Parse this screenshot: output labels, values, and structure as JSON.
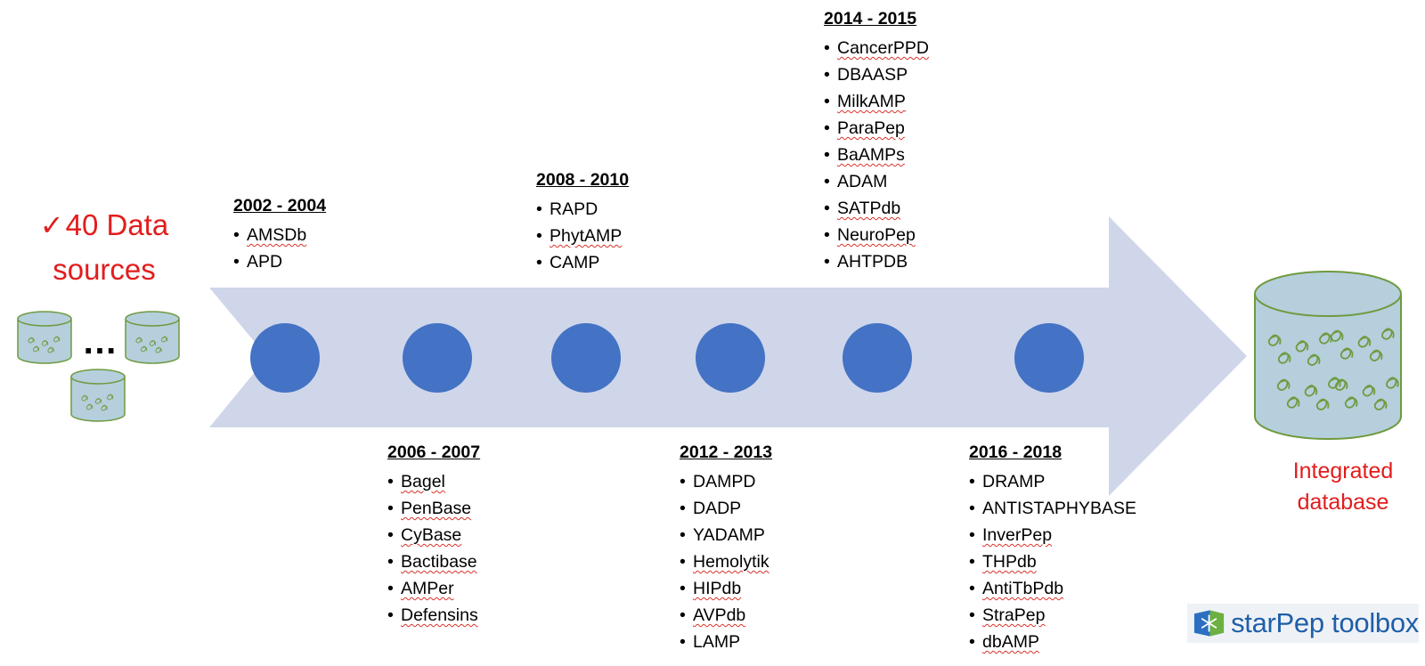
{
  "sources_label": {
    "check": "✓",
    "line1": "40 Data",
    "line2": "sources"
  },
  "ellipsis": "…",
  "integrated_label": {
    "line1": "Integrated",
    "line2": "database"
  },
  "logo_text": "starPep toolbox",
  "colors": {
    "arrow": "#cfd6ea",
    "node": "#4472c4",
    "cylinder_fill": "#b5cfdc",
    "cylinder_stroke": "#6f9a3f",
    "accent_red": "#e21d1d",
    "logo_blue": "#1f5fa8"
  },
  "timeline": [
    {
      "period": "2002 - 2004",
      "databases": [
        {
          "name": "AMSDb",
          "squiggle": true
        },
        {
          "name": "APD",
          "squiggle": false
        }
      ]
    },
    {
      "period": "2006 - 2007",
      "databases": [
        {
          "name": "Bagel",
          "squiggle": true
        },
        {
          "name": "PenBase",
          "squiggle": true
        },
        {
          "name": "CyBase",
          "squiggle": true
        },
        {
          "name": "Bactibase",
          "squiggle": true
        },
        {
          "name": "AMPer",
          "squiggle": true
        },
        {
          "name": "Defensins",
          "squiggle": true
        }
      ]
    },
    {
      "period": "2008 - 2010",
      "databases": [
        {
          "name": "RAPD",
          "squiggle": false
        },
        {
          "name": "PhytAMP",
          "squiggle": true
        },
        {
          "name": "CAMP",
          "squiggle": false
        }
      ]
    },
    {
      "period": "2012 - 2013",
      "databases": [
        {
          "name": "DAMPD",
          "squiggle": false
        },
        {
          "name": "DADP",
          "squiggle": false
        },
        {
          "name": "YADAMP",
          "squiggle": false
        },
        {
          "name": "Hemolytik",
          "squiggle": true
        },
        {
          "name": "HIPdb",
          "squiggle": true
        },
        {
          "name": "AVPdb",
          "squiggle": true
        },
        {
          "name": "LAMP",
          "squiggle": false
        }
      ]
    },
    {
      "period": "2014 - 2015",
      "databases": [
        {
          "name": "CancerPPD",
          "squiggle": true
        },
        {
          "name": "DBAASP",
          "squiggle": false
        },
        {
          "name": "MilkAMP",
          "squiggle": true
        },
        {
          "name": "ParaPep",
          "squiggle": true
        },
        {
          "name": "BaAMPs",
          "squiggle": true
        },
        {
          "name": "ADAM",
          "squiggle": false
        },
        {
          "name": "SATPdb",
          "squiggle": true
        },
        {
          "name": "NeuroPep",
          "squiggle": true
        },
        {
          "name": "AHTPDB",
          "squiggle": false
        }
      ]
    },
    {
      "period": "2016 - 2018",
      "databases": [
        {
          "name": "DRAMP",
          "squiggle": false
        },
        {
          "name": "ANTISTAPHYBASE",
          "squiggle": false
        },
        {
          "name": "InverPep",
          "squiggle": true
        },
        {
          "name": "THPdb",
          "squiggle": true
        },
        {
          "name": "AntiTbPdb",
          "squiggle": true
        },
        {
          "name": "StraPep",
          "squiggle": true
        },
        {
          "name": "dbAMP",
          "squiggle": true
        }
      ]
    }
  ]
}
